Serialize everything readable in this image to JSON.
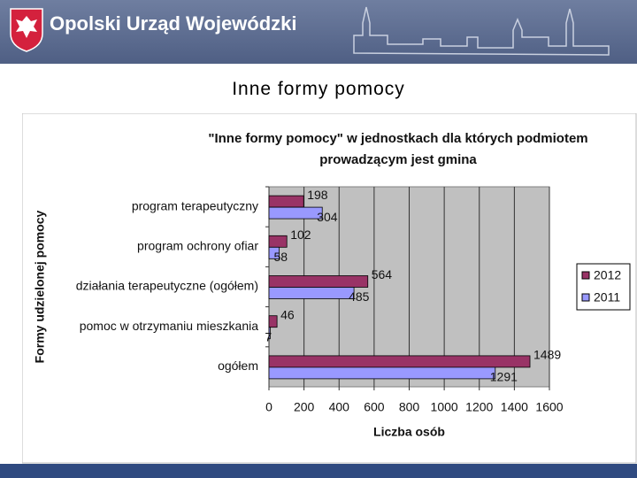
{
  "header": {
    "title": "Opolski Urząd Wojewódzki"
  },
  "slide_title": "Inne formy pomocy",
  "chart_data": {
    "type": "bar",
    "orientation": "horizontal",
    "title": "\"Inne formy pomocy\" w jednostkach dla których podmiotem prowadzącym jest gmina",
    "x_label": "Liczba osób",
    "y_label": "Formy udzielonej pomocy",
    "categories": [
      "program terapeutyczny",
      "program ochrony ofiar",
      "działania terapeutyczne (ogółem)",
      "pomoc w otrzymaniu mieszkania",
      "ogółem"
    ],
    "series": [
      {
        "name": "2012",
        "color": "#993366",
        "values": [
          198,
          102,
          564,
          46,
          1489
        ]
      },
      {
        "name": "2011",
        "color": "#9999ff",
        "values": [
          304,
          58,
          485,
          7,
          1291
        ]
      }
    ],
    "xlim": [
      0,
      1600
    ],
    "xticks": [
      0,
      200,
      400,
      600,
      800,
      1000,
      1200,
      1400,
      1600
    ],
    "grid": true,
    "legend": "right"
  }
}
